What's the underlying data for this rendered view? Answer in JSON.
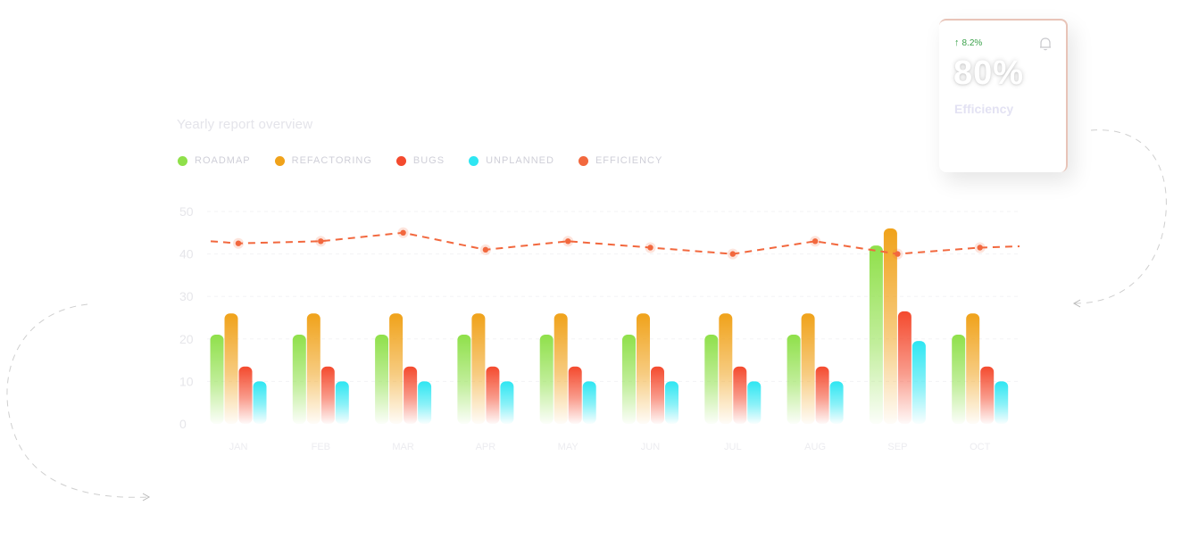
{
  "chart_data": {
    "type": "bar",
    "title": "Yearly report overview",
    "categories": [
      "JAN",
      "FEB",
      "MAR",
      "APR",
      "MAY",
      "JUN",
      "JUL",
      "AUG",
      "SEP",
      "OCT"
    ],
    "series": [
      {
        "name": "ROADMAP",
        "color": "#8fe04a",
        "values": [
          21,
          21,
          21,
          21,
          21,
          21,
          21,
          21,
          42,
          21
        ]
      },
      {
        "name": "REFACTORING",
        "color": "#f0a21a",
        "values": [
          26,
          26,
          26,
          26,
          26,
          26,
          26,
          26,
          46,
          26
        ]
      },
      {
        "name": "BUGS",
        "color": "#f44a2e",
        "values": [
          13.5,
          13.5,
          13.5,
          13.5,
          13.5,
          13.5,
          13.5,
          13.5,
          26.5,
          13.5
        ]
      },
      {
        "name": "UNPLANNED",
        "color": "#2ee6f2",
        "values": [
          10,
          10,
          10,
          10,
          10,
          10,
          10,
          10,
          19.5,
          10
        ]
      }
    ],
    "line_series": {
      "name": "EFFICIENCY",
      "color": "#f2683e",
      "values": [
        42.5,
        43,
        45,
        41,
        43,
        41.5,
        40,
        43,
        40,
        41.5
      ]
    },
    "yticks": [
      "0",
      "10",
      "20",
      "30",
      "40",
      "50"
    ],
    "ylim": [
      0,
      50
    ],
    "legend_position": "top-left"
  },
  "card": {
    "change": "8.2%",
    "value": "80%",
    "label": "Efficiency",
    "icons": {
      "change": "arrow-up-icon",
      "notify": "bell-icon"
    },
    "accent": "#3aa14a"
  }
}
